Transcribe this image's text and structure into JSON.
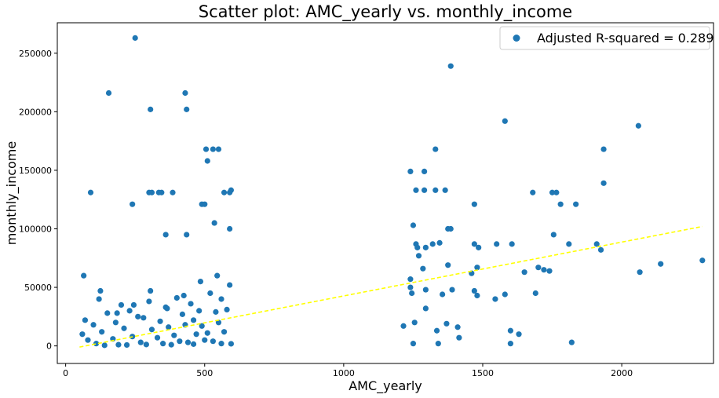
{
  "chart_data": {
    "type": "scatter",
    "title": "Scatter plot: AMC_yearly vs. monthly_income",
    "xlabel": "AMC_yearly",
    "ylabel": "monthly_income",
    "xlim": [
      -30,
      2330
    ],
    "ylim": [
      -15000,
      276000
    ],
    "x_ticks": [
      0,
      500,
      1000,
      1500,
      2000
    ],
    "y_ticks": [
      0,
      50000,
      100000,
      150000,
      200000,
      250000
    ],
    "legend": {
      "label": "Adjusted R-squared = 0.289",
      "position": "top-right"
    },
    "grid": false,
    "colors": {
      "points": "#1f77b4",
      "trend": "#ffff00"
    },
    "trendline": {
      "x": [
        50,
        2290
      ],
      "y": [
        -1000,
        102000
      ],
      "style": "dashed"
    },
    "series": [
      {
        "name": "Adjusted R-squared = 0.289",
        "x": [
          250,
          155,
          430,
          305,
          435,
          1385,
          1580,
          2060,
          1330,
          1935,
          505,
          530,
          510,
          550,
          1240,
          1290,
          1935,
          1260,
          1290,
          1330,
          1365,
          1470,
          300,
          310,
          335,
          345,
          385,
          570,
          590,
          595,
          90,
          1765,
          1680,
          1750,
          1780,
          1835,
          240,
          490,
          500,
          1250,
          1375,
          1385,
          535,
          590,
          435,
          360,
          1550,
          1470,
          1605,
          1910,
          1925,
          1260,
          1320,
          1345,
          1485,
          1810,
          1265,
          1295,
          1700,
          1740,
          1755,
          2140,
          2290,
          2065,
          1270,
          1240,
          1285,
          1375,
          1480,
          1460,
          1650,
          1720,
          1240,
          1295,
          1245,
          1355,
          1390,
          1470,
          1480,
          1545,
          1580,
          1690,
          1215,
          1255,
          1295,
          1335,
          1370,
          1410,
          1600,
          1630,
          1250,
          1415,
          1820,
          1340,
          1600,
          120,
          150,
          200,
          230,
          260,
          300,
          360,
          400,
          450,
          480,
          520,
          560,
          590,
          70,
          100,
          180,
          280,
          340,
          420,
          460,
          540,
          580,
          60,
          130,
          210,
          310,
          370,
          430,
          490,
          550,
          80,
          170,
          240,
          330,
          390,
          470,
          510,
          570,
          110,
          190,
          270,
          350,
          410,
          440,
          500,
          530,
          140,
          220,
          290,
          380,
          460,
          560,
          595,
          65,
          125,
          185,
          245,
          305,
          365,
          425,
          485,
          545
        ],
        "y": [
          263000,
          216000,
          216000,
          202000,
          202000,
          239000,
          192000,
          188000,
          168000,
          168000,
          168000,
          168000,
          158000,
          168000,
          149000,
          149000,
          139000,
          133000,
          133000,
          133000,
          133000,
          121000,
          131000,
          131000,
          131000,
          131000,
          131000,
          131000,
          131000,
          133000,
          131000,
          131000,
          131000,
          131000,
          121000,
          121000,
          121000,
          121000,
          121000,
          103000,
          100000,
          100000,
          105000,
          100000,
          95000,
          95000,
          87000,
          87000,
          87000,
          87000,
          82000,
          87000,
          87000,
          88000,
          84000,
          87000,
          84000,
          84000,
          67000,
          64000,
          95000,
          70000,
          73000,
          63000,
          77000,
          57000,
          66000,
          69000,
          67000,
          62000,
          63000,
          65000,
          50000,
          48000,
          45000,
          44000,
          48000,
          47000,
          43000,
          40000,
          44000,
          45000,
          17000,
          20000,
          32000,
          13000,
          19000,
          16000,
          13000,
          10000,
          2000,
          7000,
          3000,
          2000,
          2000,
          40000,
          28000,
          35000,
          30000,
          25000,
          38000,
          33000,
          41000,
          36000,
          30000,
          45000,
          40000,
          52000,
          22000,
          18000,
          20000,
          24000,
          21000,
          27000,
          22000,
          29000,
          31000,
          10000,
          12000,
          15000,
          14000,
          16000,
          18000,
          17000,
          20000,
          5000,
          6000,
          8000,
          7000,
          9000,
          10000,
          11000,
          12000,
          2000,
          1000,
          3000,
          2000,
          4000,
          3000,
          5000,
          4000,
          500,
          800,
          1200,
          1000,
          1500,
          2000,
          1800,
          60000,
          47000,
          28000,
          35000,
          47000,
          32000,
          43000,
          55000,
          60000
        ]
      }
    ]
  }
}
